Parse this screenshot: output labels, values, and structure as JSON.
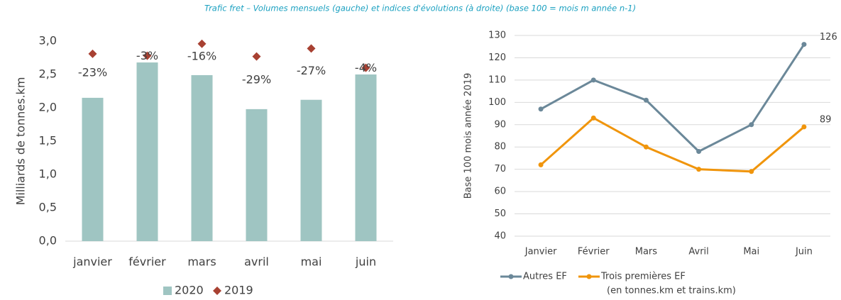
{
  "title": "Trafic fret – Volumes mensuels (gauche) et indices d'évolutions (à droite) (base 100 = mois m année n-1)",
  "chart_data": [
    {
      "type": "bar",
      "y_label": "Milliards de tonnes.km",
      "categories": [
        "janvier",
        "février",
        "mars",
        "avril",
        "mai",
        "juin"
      ],
      "series": [
        {
          "name": "2020",
          "color": "#9fc5c2",
          "marker": "bar",
          "values": [
            2.15,
            2.68,
            2.49,
            1.98,
            2.12,
            2.5
          ]
        },
        {
          "name": "2019",
          "color": "#a84132",
          "marker": "diamond",
          "values": [
            2.81,
            2.78,
            2.96,
            2.77,
            2.89,
            2.6
          ]
        }
      ],
      "annotations": [
        "-23%",
        "-3%",
        "-16%",
        "-29%",
        "-27%",
        "-4%"
      ],
      "ylim": [
        0,
        3
      ],
      "yticks": [
        {
          "value": 0,
          "label": "0,0"
        },
        {
          "value": 0.5,
          "label": "0,5"
        },
        {
          "value": 1,
          "label": "1,0"
        },
        {
          "value": 1.5,
          "label": "1,5"
        },
        {
          "value": 2,
          "label": "2,0"
        },
        {
          "value": 2.5,
          "label": "2,5"
        },
        {
          "value": 3,
          "label": "3,0"
        }
      ],
      "grid": false
    },
    {
      "type": "line",
      "y_label": "Base 100  mois année 2019",
      "categories": [
        "Janvier",
        "Février",
        "Mars",
        "Avril",
        "Mai",
        "Juin"
      ],
      "series": [
        {
          "name": "Autres EF",
          "color": "#6b8899",
          "values": [
            97,
            110,
            101,
            78,
            90,
            126
          ]
        },
        {
          "name": "Trois premières EF",
          "color": "#f0950c",
          "values": [
            72,
            93,
            80,
            70,
            69,
            89
          ]
        }
      ],
      "legend_note": "(en tonnes.km et trains.km)",
      "ylim": [
        40,
        130
      ],
      "yticks": [
        40,
        50,
        60,
        70,
        80,
        90,
        100,
        110,
        120,
        130
      ],
      "grid": true
    }
  ]
}
